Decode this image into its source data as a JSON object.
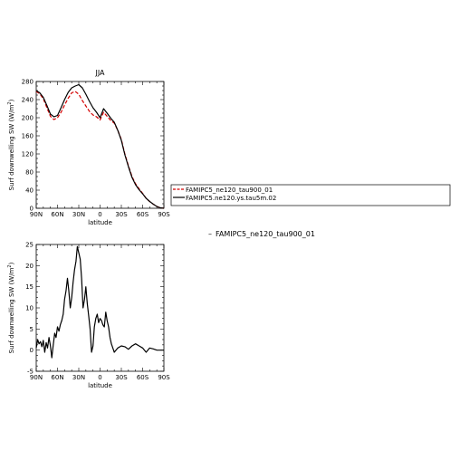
{
  "chart_data": [
    {
      "type": "line",
      "title": "JJA",
      "xlabel": "latitude",
      "ylabel": "Surf downwelling SW (W/m",
      "ylabel_sup": "2",
      "ylabel_end": ")",
      "xticks": [
        {
          "v": 90,
          "label": "90N"
        },
        {
          "v": 60,
          "label": "60N"
        },
        {
          "v": 30,
          "label": "30N"
        },
        {
          "v": 0,
          "label": "0"
        },
        {
          "v": -30,
          "label": "30S"
        },
        {
          "v": -60,
          "label": "60S"
        },
        {
          "v": -90,
          "label": "90S"
        }
      ],
      "xlim": [
        90,
        -90
      ],
      "ylim": [
        0,
        280
      ],
      "yticks": [
        0,
        40,
        80,
        120,
        160,
        200,
        240,
        280
      ],
      "legend_position": "right",
      "series": [
        {
          "name": "FAMIPC5_ne120_tau900_01",
          "color": "#d40000",
          "dash": "4,2",
          "x": [
            90,
            85,
            80,
            75,
            70,
            65,
            60,
            55,
            50,
            45,
            40,
            35,
            30,
            25,
            20,
            15,
            10,
            5,
            0,
            -5,
            -10,
            -15,
            -20,
            -25,
            -30,
            -35,
            -40,
            -45,
            -50,
            -55,
            -60,
            -65,
            -70,
            -75,
            -80,
            -85,
            -90
          ],
          "y": [
            258,
            253,
            242,
            222,
            203,
            196,
            200,
            212,
            228,
            243,
            255,
            258,
            252,
            238,
            226,
            214,
            206,
            202,
            195,
            212,
            203,
            194,
            188,
            172,
            152,
            120,
            94,
            70,
            54,
            43,
            33,
            22,
            15,
            9,
            4,
            1,
            0
          ]
        },
        {
          "name": "FAMIPC5.ne120.ys.tau5m.02",
          "color": "#000000",
          "dash": "",
          "x": [
            90,
            85,
            80,
            75,
            70,
            65,
            60,
            55,
            50,
            45,
            40,
            35,
            30,
            25,
            20,
            15,
            10,
            5,
            0,
            -5,
            -10,
            -15,
            -20,
            -25,
            -30,
            -35,
            -40,
            -45,
            -50,
            -55,
            -60,
            -65,
            -70,
            -75,
            -80,
            -85,
            -90
          ],
          "y": [
            260,
            255,
            245,
            227,
            208,
            202,
            205,
            222,
            240,
            256,
            266,
            270,
            273,
            266,
            252,
            236,
            222,
            212,
            200,
            220,
            210,
            199,
            190,
            172,
            150,
            118,
            92,
            68,
            52,
            41,
            32,
            22,
            15,
            9,
            4,
            1,
            0
          ]
        }
      ]
    },
    {
      "type": "line",
      "title": "",
      "xlabel": "latitude",
      "ylabel": "Surf downwelling SW (W/m",
      "ylabel_sup": "2",
      "ylabel_end": ")",
      "xticks": [
        {
          "v": 90,
          "label": "90N"
        },
        {
          "v": 60,
          "label": "60N"
        },
        {
          "v": 30,
          "label": "30N"
        },
        {
          "v": 0,
          "label": "0"
        },
        {
          "v": -30,
          "label": "30S"
        },
        {
          "v": -60,
          "label": "60S"
        },
        {
          "v": -90,
          "label": "90S"
        }
      ],
      "xlim": [
        90,
        -90
      ],
      "ylim": [
        -5,
        25
      ],
      "yticks": [
        -5,
        0,
        5,
        10,
        15,
        20,
        25
      ],
      "series": [
        {
          "name": "",
          "color": "#000000",
          "dash": "",
          "x": [
            90,
            88,
            86,
            84,
            82,
            80,
            78,
            76,
            74,
            72,
            70,
            68,
            66,
            64,
            62,
            60,
            58,
            56,
            54,
            52,
            50,
            48,
            46,
            44,
            42,
            40,
            38,
            36,
            34,
            32,
            30,
            28,
            26,
            24,
            22,
            20,
            18,
            16,
            14,
            12,
            10,
            8,
            6,
            4,
            2,
            0,
            -2,
            -4,
            -6,
            -8,
            -10,
            -12,
            -14,
            -16,
            -18,
            -20,
            -25,
            -30,
            -35,
            -40,
            -45,
            -50,
            -55,
            -60,
            -65,
            -70,
            -75,
            -80,
            -85,
            -90
          ],
          "y": [
            0.5,
            2.5,
            1.5,
            2.0,
            0.8,
            2.3,
            -0.5,
            1.8,
            0.5,
            3.0,
            1.0,
            -1.8,
            1.2,
            4.0,
            3.0,
            5.5,
            4.5,
            6.0,
            7.0,
            8.5,
            12.0,
            14.0,
            17.0,
            14.0,
            10.0,
            12.5,
            16.0,
            19.0,
            21.0,
            24.5,
            23.0,
            21.5,
            17.0,
            10.0,
            12.0,
            15.0,
            11.0,
            8.0,
            5.0,
            -0.5,
            1.0,
            5.5,
            7.5,
            8.5,
            6.5,
            7.5,
            7.0,
            6.0,
            5.5,
            9.0,
            7.0,
            5.5,
            3.0,
            1.5,
            0.5,
            -0.5,
            0.5,
            1.0,
            0.8,
            0.2,
            1.0,
            1.5,
            1.0,
            0.5,
            -0.5,
            0.5,
            0.3,
            0.0,
            0.0,
            0.0
          ]
        }
      ]
    }
  ],
  "diff_label": "FAMIPC5_ne120_tau900_01",
  "diff_marker": "–"
}
